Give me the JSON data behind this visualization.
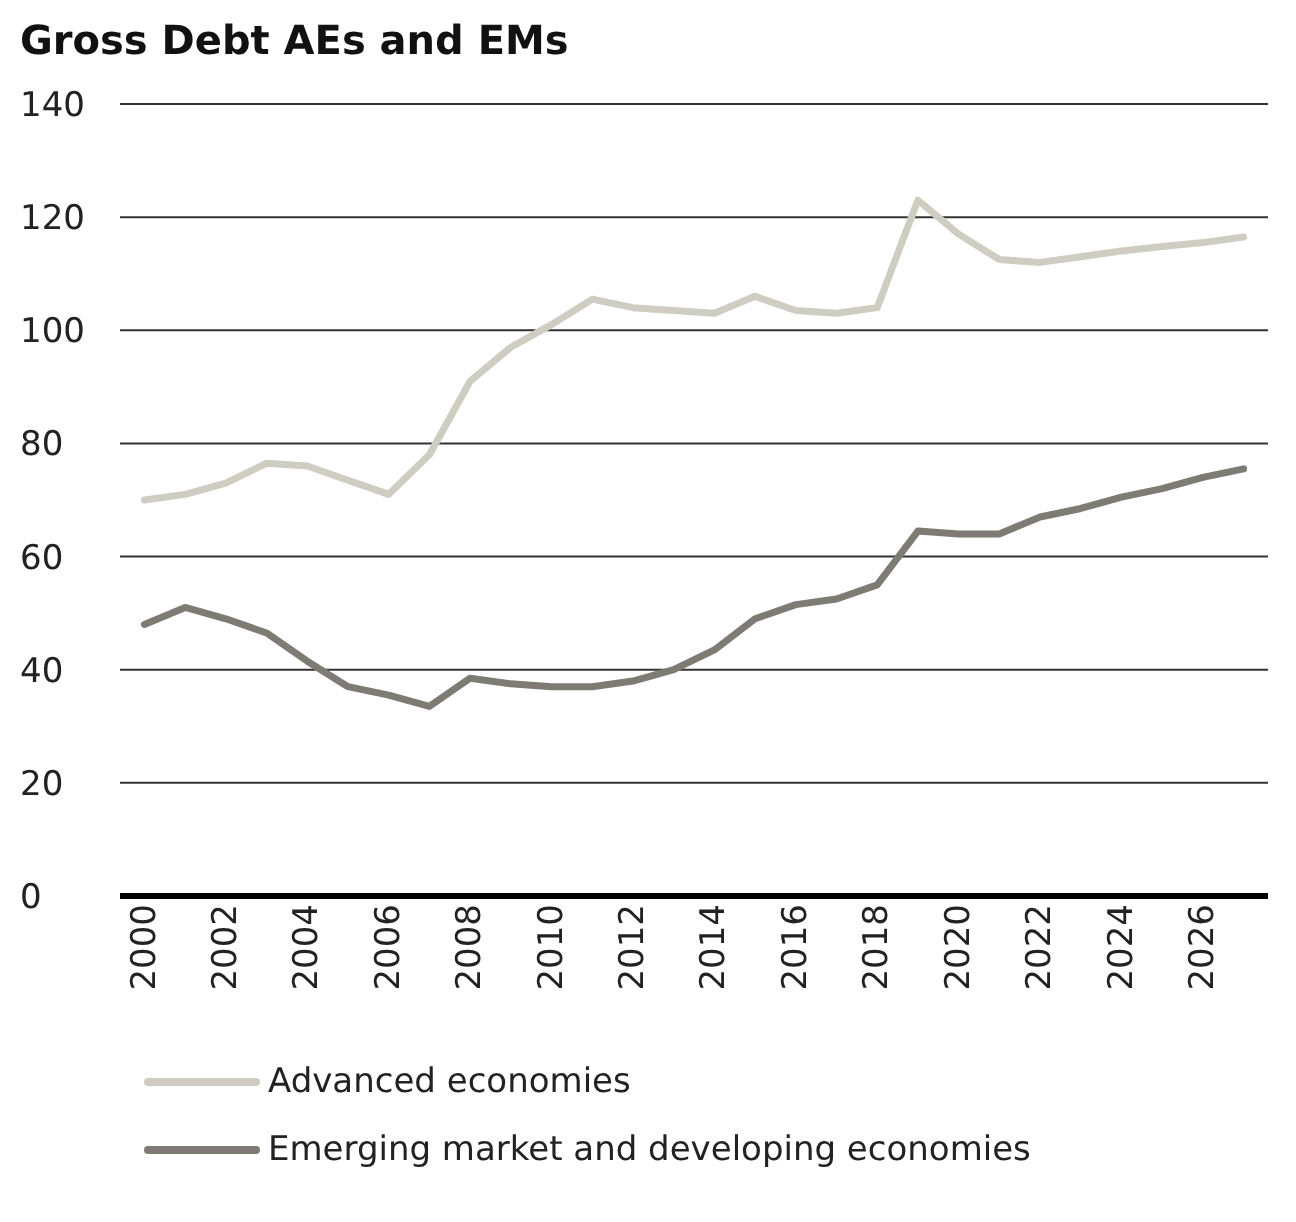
{
  "chart_data": {
    "type": "line",
    "title": "Gross Debt AEs and EMs",
    "x": [
      2000,
      2001,
      2002,
      2003,
      2004,
      2005,
      2006,
      2007,
      2008,
      2009,
      2010,
      2011,
      2012,
      2013,
      2014,
      2015,
      2016,
      2017,
      2018,
      2019,
      2020,
      2021,
      2022,
      2023,
      2024,
      2025,
      2026,
      2027
    ],
    "series": [
      {
        "name": "Advanced economies",
        "color": "#cfcdc1",
        "values": [
          70,
          71,
          73,
          76.5,
          76,
          73.5,
          71,
          78,
          91,
          97,
          101,
          105.5,
          104,
          103.5,
          103,
          106,
          103.5,
          103,
          104,
          123,
          117,
          112.5,
          112,
          113,
          114,
          114.8,
          115.5,
          116.5
        ]
      },
      {
        "name": "Emerging market and developing economies",
        "color": "#7d7b73",
        "values": [
          48,
          51,
          49,
          46.5,
          41.5,
          37,
          35.5,
          33.5,
          38.5,
          37.5,
          37,
          37,
          38,
          40,
          43.5,
          49,
          51.5,
          52.5,
          55,
          64.5,
          64,
          64,
          67,
          68.5,
          70.5,
          72,
          74,
          75.5
        ]
      }
    ],
    "xlim": [
      1999.4,
      2027.6
    ],
    "xticks": [
      2000,
      2002,
      2004,
      2006,
      2008,
      2010,
      2012,
      2014,
      2016,
      2018,
      2020,
      2022,
      2024,
      2026
    ],
    "ylim": [
      0,
      140
    ],
    "yticks": [
      0,
      20,
      40,
      60,
      80,
      100,
      120,
      140
    ],
    "grid": "y",
    "legend": "bottom",
    "marker": "none",
    "line_style": "solid"
  }
}
